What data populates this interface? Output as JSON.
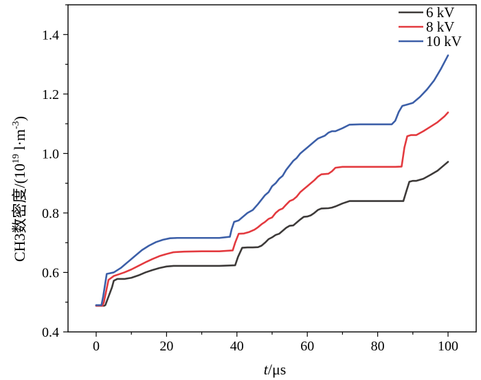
{
  "chart_data": {
    "type": "line",
    "title": "",
    "xlabel_italic": "t",
    "xlabel_rest": "/μs",
    "ylabel_main": "CH3数密度/(10",
    "ylabel_exp": "19",
    "ylabel_unit": " l·m",
    "ylabel_unit_exp": "-3",
    "ylabel_close": ")",
    "xlim": [
      -8,
      108
    ],
    "ylim": [
      0.4,
      1.5
    ],
    "xticks": [
      0,
      20,
      40,
      60,
      80,
      100
    ],
    "yticks": [
      0.4,
      0.6,
      0.8,
      1.0,
      1.2,
      1.4
    ],
    "xtick_labels": [
      "0",
      "20",
      "40",
      "60",
      "80",
      "100"
    ],
    "ytick_labels": [
      "0.4",
      "0.6",
      "0.8",
      "1.0",
      "1.2",
      "1.4"
    ],
    "grid": false,
    "legend_position": "top-right",
    "series": [
      {
        "name": "6 kV",
        "color": "#3d3a39",
        "x": [
          0,
          2.3,
          2.6,
          4.5,
          5,
          6,
          8,
          10,
          12,
          14,
          16,
          18,
          20,
          22,
          25,
          30,
          35,
          39.5,
          40.3,
          41.5,
          43,
          44.5,
          46,
          47,
          48,
          49,
          50,
          51,
          52,
          53,
          54,
          55,
          56,
          57,
          58,
          59,
          60,
          61,
          62,
          63,
          64,
          66,
          67,
          68,
          70,
          72,
          75,
          80,
          85,
          87.3,
          88.2,
          89,
          90,
          91,
          93,
          95,
          97,
          99,
          100
        ],
        "y": [
          0.488,
          0.488,
          0.49,
          0.55,
          0.572,
          0.578,
          0.578,
          0.582,
          0.59,
          0.6,
          0.608,
          0.615,
          0.62,
          0.622,
          0.622,
          0.622,
          0.622,
          0.624,
          0.652,
          0.683,
          0.684,
          0.684,
          0.685,
          0.69,
          0.7,
          0.712,
          0.718,
          0.726,
          0.73,
          0.74,
          0.75,
          0.757,
          0.758,
          0.768,
          0.778,
          0.787,
          0.788,
          0.792,
          0.8,
          0.81,
          0.815,
          0.816,
          0.818,
          0.822,
          0.832,
          0.84,
          0.84,
          0.84,
          0.84,
          0.84,
          0.875,
          0.905,
          0.908,
          0.908,
          0.915,
          0.928,
          0.942,
          0.962,
          0.972
        ]
      },
      {
        "name": "8 kV",
        "color": "#e33a3f",
        "x": [
          0,
          1.8,
          2.2,
          3.5,
          5,
          6,
          8,
          10,
          12,
          14,
          16,
          18,
          20,
          22,
          25,
          30,
          35,
          38.8,
          39.5,
          40.5,
          42,
          43.5,
          45,
          46,
          47,
          48,
          49,
          50,
          51,
          52,
          53,
          54,
          55,
          56,
          57,
          58,
          59,
          60,
          61,
          62,
          63,
          64,
          66,
          67,
          68,
          70,
          75,
          80,
          85,
          86.8,
          87.6,
          88.4,
          89.5,
          91,
          93,
          95,
          97,
          99,
          100
        ],
        "y": [
          0.488,
          0.488,
          0.5,
          0.575,
          0.588,
          0.592,
          0.6,
          0.61,
          0.622,
          0.634,
          0.645,
          0.655,
          0.662,
          0.668,
          0.67,
          0.671,
          0.671,
          0.674,
          0.7,
          0.73,
          0.731,
          0.736,
          0.744,
          0.752,
          0.762,
          0.77,
          0.78,
          0.785,
          0.8,
          0.81,
          0.815,
          0.828,
          0.84,
          0.845,
          0.855,
          0.87,
          0.88,
          0.89,
          0.9,
          0.91,
          0.922,
          0.93,
          0.932,
          0.94,
          0.952,
          0.955,
          0.955,
          0.955,
          0.955,
          0.956,
          1.02,
          1.058,
          1.062,
          1.062,
          1.075,
          1.09,
          1.105,
          1.125,
          1.138
        ]
      },
      {
        "name": "10 kV",
        "color": "#3c5fa8",
        "x": [
          0,
          1.5,
          2,
          3,
          5,
          7,
          9,
          11,
          13,
          15,
          17,
          19,
          21,
          23,
          26,
          30,
          35,
          38,
          38.5,
          39.2,
          40.5,
          41.5,
          43,
          44.5,
          46,
          47,
          48,
          49,
          50,
          51,
          52,
          53,
          54,
          55,
          56,
          57,
          58,
          59,
          60,
          61,
          62,
          63,
          64,
          65,
          66,
          67,
          68,
          70,
          72,
          75,
          80,
          84,
          85,
          86,
          87,
          88.5,
          90,
          92,
          94,
          96,
          98,
          100
        ],
        "y": [
          0.49,
          0.49,
          0.52,
          0.595,
          0.6,
          0.615,
          0.635,
          0.655,
          0.675,
          0.69,
          0.702,
          0.71,
          0.715,
          0.716,
          0.716,
          0.716,
          0.716,
          0.72,
          0.745,
          0.77,
          0.775,
          0.785,
          0.8,
          0.81,
          0.83,
          0.845,
          0.86,
          0.87,
          0.89,
          0.9,
          0.915,
          0.925,
          0.945,
          0.96,
          0.975,
          0.985,
          1.0,
          1.01,
          1.02,
          1.03,
          1.04,
          1.05,
          1.055,
          1.06,
          1.07,
          1.075,
          1.075,
          1.085,
          1.097,
          1.098,
          1.098,
          1.098,
          1.11,
          1.14,
          1.16,
          1.165,
          1.17,
          1.19,
          1.215,
          1.245,
          1.285,
          1.33
        ]
      }
    ]
  }
}
